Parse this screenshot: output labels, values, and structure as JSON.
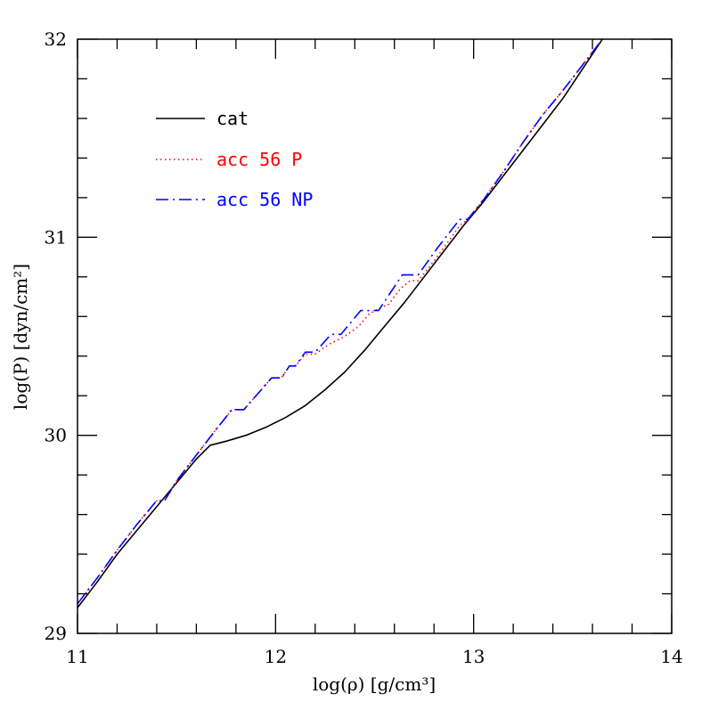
{
  "chart_data": {
    "type": "line",
    "xlabel": "log(ρ)  [g/cm³]",
    "ylabel": "log(P)  [dyn/cm²]",
    "xlim": [
      11,
      14
    ],
    "ylim": [
      29,
      32
    ],
    "xticks": [
      {
        "value": 11,
        "label": "11"
      },
      {
        "value": 12,
        "label": "12"
      },
      {
        "value": 13,
        "label": "13"
      },
      {
        "value": 14,
        "label": "14"
      }
    ],
    "yticks": [
      {
        "value": 29,
        "label": "29"
      },
      {
        "value": 30,
        "label": "30"
      },
      {
        "value": 31,
        "label": "31"
      },
      {
        "value": 32,
        "label": "32"
      }
    ],
    "legend_position": "top-left",
    "series": [
      {
        "name": "cat",
        "color": "#000000",
        "style": "solid",
        "points": [
          [
            11.0,
            29.13
          ],
          [
            11.1,
            29.26
          ],
          [
            11.2,
            29.4
          ],
          [
            11.3,
            29.52
          ],
          [
            11.4,
            29.64
          ],
          [
            11.5,
            29.76
          ],
          [
            11.6,
            29.88
          ],
          [
            11.67,
            29.95
          ],
          [
            11.75,
            29.97
          ],
          [
            11.85,
            30.0
          ],
          [
            11.95,
            30.04
          ],
          [
            12.05,
            30.09
          ],
          [
            12.15,
            30.15
          ],
          [
            12.25,
            30.23
          ],
          [
            12.35,
            30.32
          ],
          [
            12.45,
            30.43
          ],
          [
            12.55,
            30.55
          ],
          [
            12.65,
            30.67
          ],
          [
            12.75,
            30.8
          ],
          [
            12.85,
            30.93
          ],
          [
            12.95,
            31.06
          ],
          [
            13.05,
            31.18
          ],
          [
            13.15,
            31.31
          ],
          [
            13.25,
            31.44
          ],
          [
            13.35,
            31.57
          ],
          [
            13.45,
            31.7
          ],
          [
            13.55,
            31.85
          ],
          [
            13.65,
            32.0
          ]
        ]
      },
      {
        "name": "acc 56 P",
        "color": "#ff0000",
        "style": "dotted",
        "points": [
          [
            11.0,
            29.15
          ],
          [
            11.1,
            29.28
          ],
          [
            11.2,
            29.42
          ],
          [
            11.3,
            29.55
          ],
          [
            11.4,
            29.67
          ],
          [
            11.44,
            29.67
          ],
          [
            11.5,
            29.77
          ],
          [
            11.6,
            29.9
          ],
          [
            11.7,
            30.03
          ],
          [
            11.78,
            30.13
          ],
          [
            11.84,
            30.13
          ],
          [
            11.98,
            30.29
          ],
          [
            12.03,
            30.29
          ],
          [
            12.07,
            30.35
          ],
          [
            12.1,
            30.35
          ],
          [
            12.15,
            30.41
          ],
          [
            12.2,
            30.41
          ],
          [
            12.27,
            30.46
          ],
          [
            12.35,
            30.5
          ],
          [
            12.42,
            30.55
          ],
          [
            12.47,
            30.61
          ],
          [
            12.52,
            30.64
          ],
          [
            12.57,
            30.66
          ],
          [
            12.63,
            30.74
          ],
          [
            12.68,
            30.78
          ],
          [
            12.72,
            30.78
          ],
          [
            12.8,
            30.88
          ],
          [
            12.88,
            30.99
          ],
          [
            12.93,
            31.06
          ],
          [
            12.97,
            31.09
          ],
          [
            13.05,
            31.19
          ],
          [
            13.15,
            31.33
          ],
          [
            13.25,
            31.48
          ],
          [
            13.35,
            31.62
          ],
          [
            13.45,
            31.74
          ],
          [
            13.55,
            31.87
          ],
          [
            13.65,
            32.0
          ]
        ]
      },
      {
        "name": "acc 56 NP",
        "color": "#0000ff",
        "style": "dashdot",
        "points": [
          [
            11.0,
            29.15
          ],
          [
            11.1,
            29.28
          ],
          [
            11.2,
            29.42
          ],
          [
            11.3,
            29.55
          ],
          [
            11.4,
            29.67
          ],
          [
            11.44,
            29.67
          ],
          [
            11.5,
            29.77
          ],
          [
            11.6,
            29.9
          ],
          [
            11.7,
            30.03
          ],
          [
            11.78,
            30.13
          ],
          [
            11.84,
            30.13
          ],
          [
            11.98,
            30.29
          ],
          [
            12.03,
            30.29
          ],
          [
            12.07,
            30.35
          ],
          [
            12.1,
            30.35
          ],
          [
            12.15,
            30.42
          ],
          [
            12.2,
            30.42
          ],
          [
            12.28,
            30.51
          ],
          [
            12.33,
            30.51
          ],
          [
            12.43,
            30.63
          ],
          [
            12.52,
            30.63
          ],
          [
            12.64,
            30.81
          ],
          [
            12.72,
            30.81
          ],
          [
            12.82,
            30.95
          ],
          [
            12.93,
            31.09
          ],
          [
            12.97,
            31.09
          ],
          [
            13.05,
            31.19
          ],
          [
            13.15,
            31.33
          ],
          [
            13.25,
            31.48
          ],
          [
            13.35,
            31.62
          ],
          [
            13.45,
            31.74
          ],
          [
            13.55,
            31.87
          ],
          [
            13.65,
            32.0
          ]
        ]
      }
    ]
  }
}
